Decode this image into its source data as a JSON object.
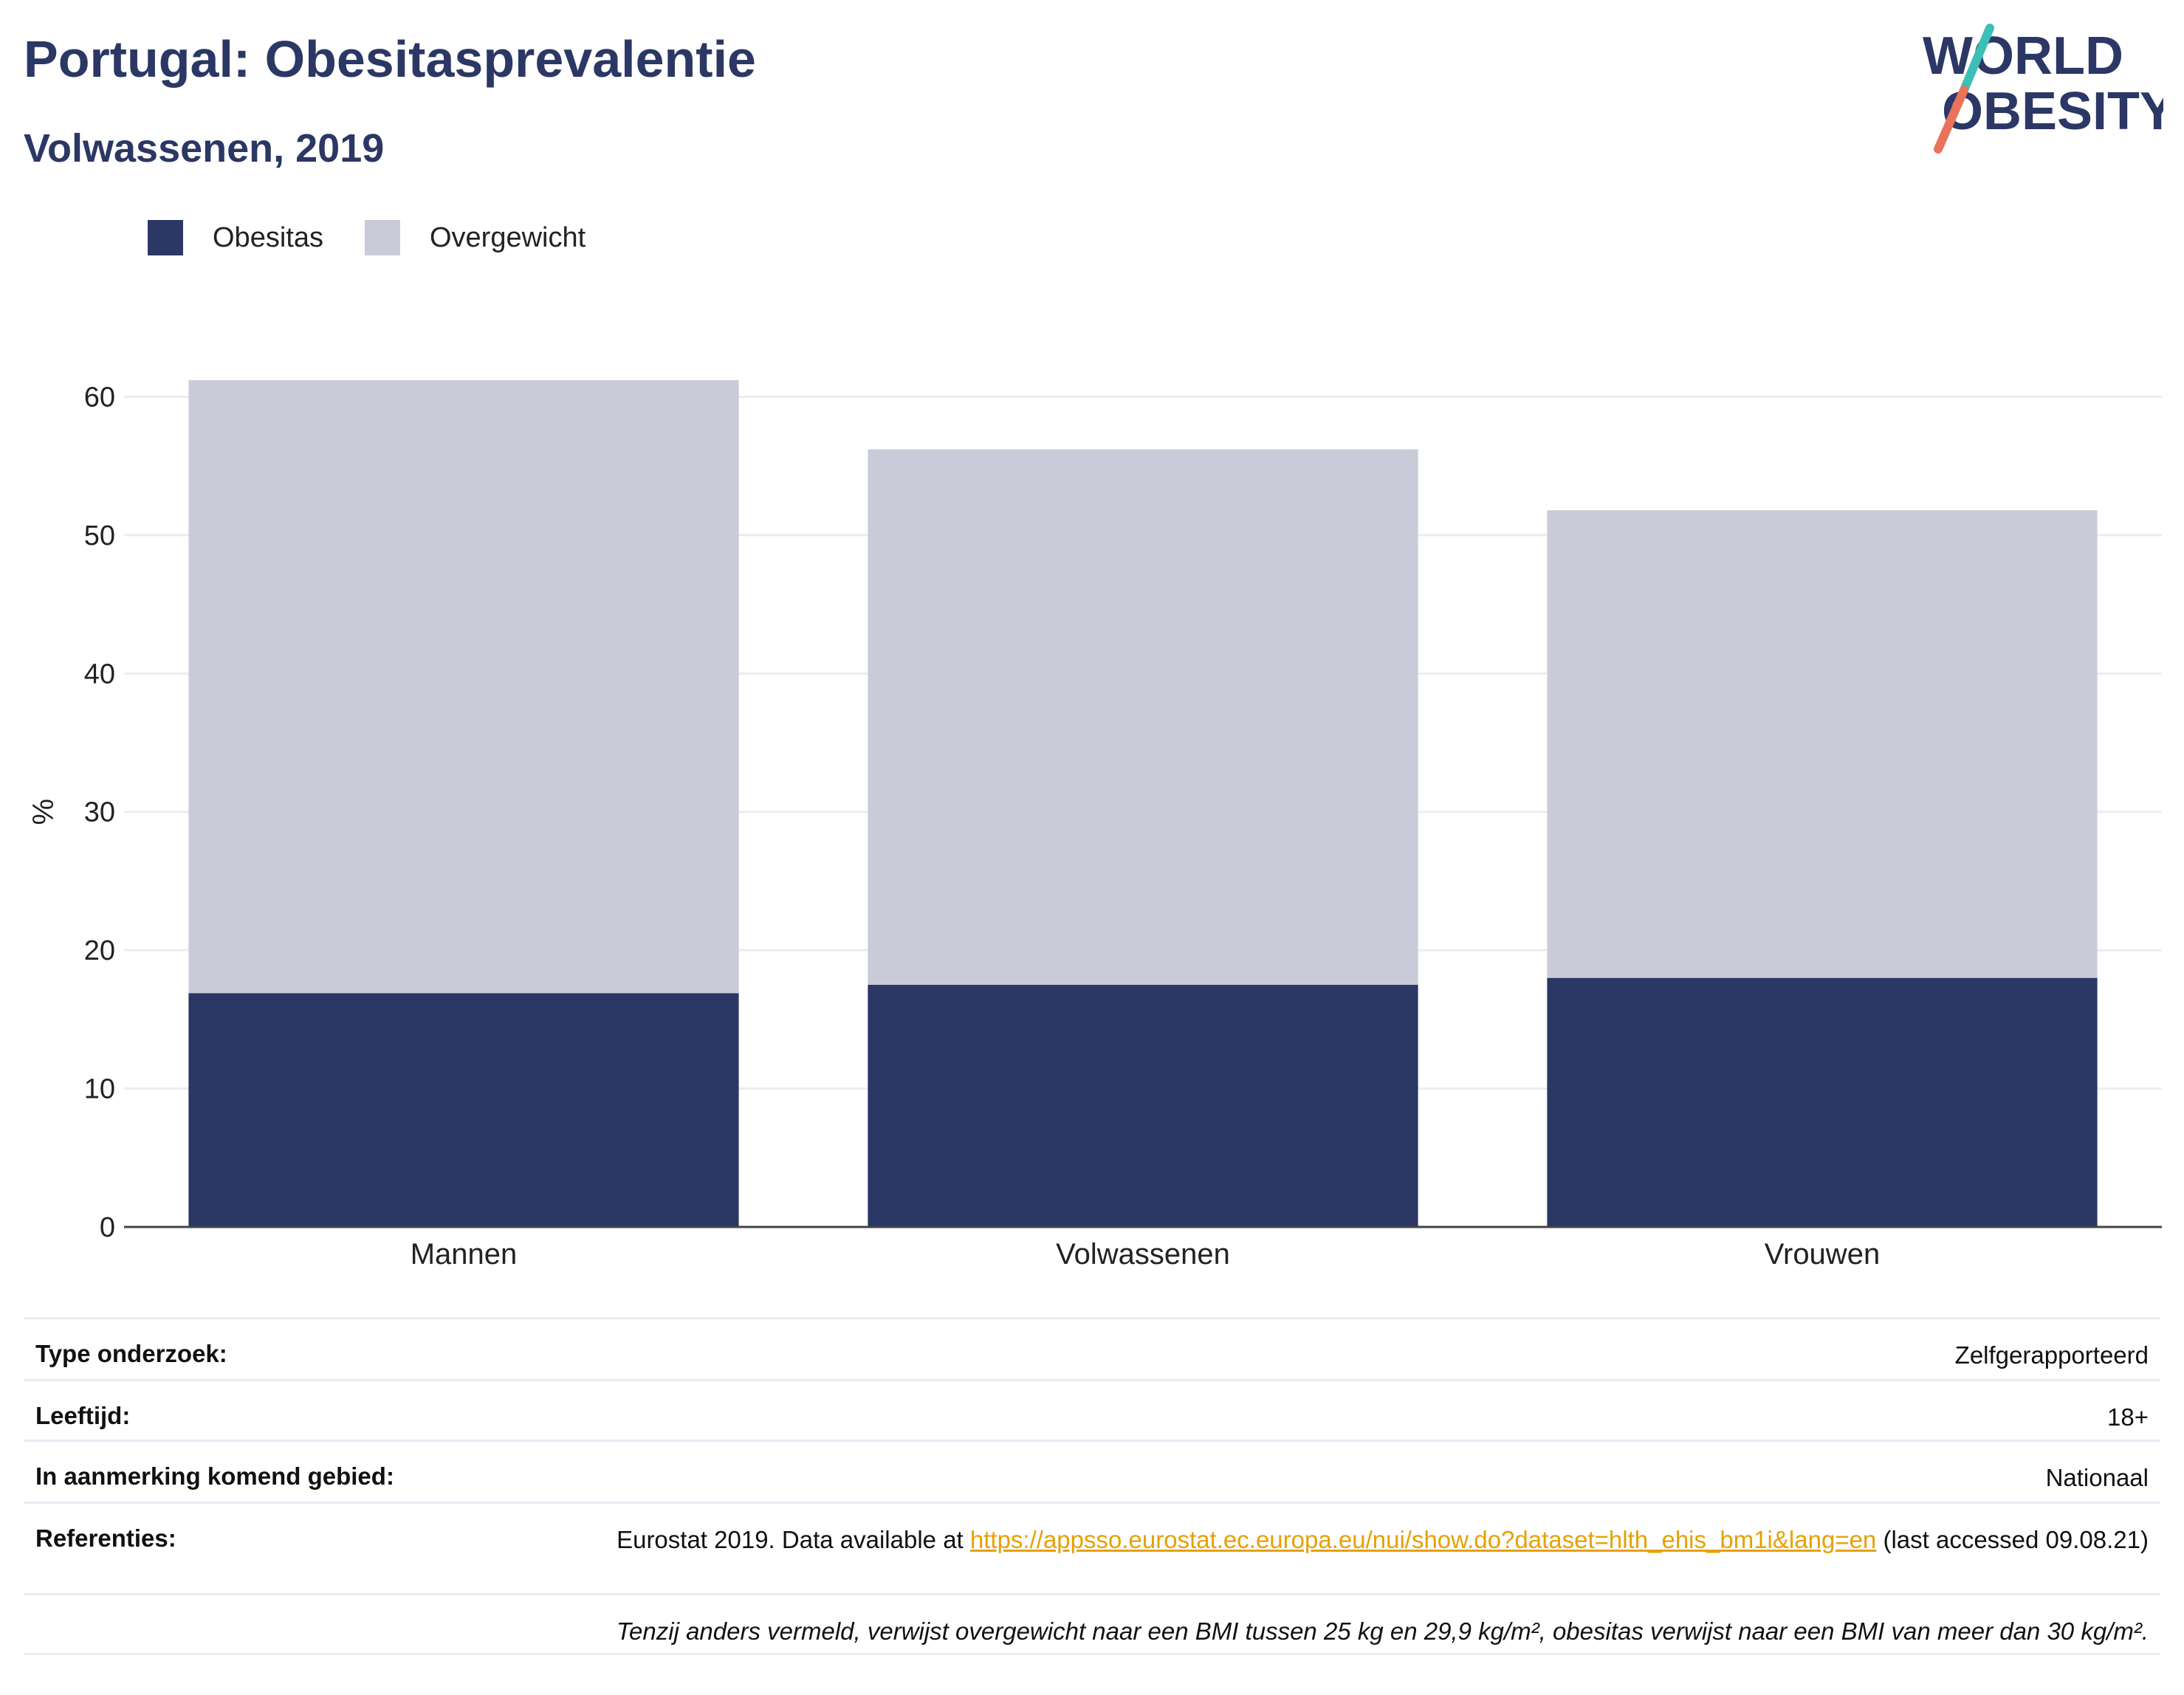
{
  "header": {
    "title": "Portugal: Obesitasprevalentie",
    "subtitle": "Volwassenen, 2019"
  },
  "logo": {
    "line1": "WORLD",
    "line2": "OBESITY"
  },
  "legend": [
    {
      "label": "Obesitas",
      "color": "#2b3764"
    },
    {
      "label": "Overgewicht",
      "color": "#c9ccd8"
    }
  ],
  "chart_data": {
    "type": "bar",
    "stacked": true,
    "categories": [
      "Mannen",
      "Volwassenen",
      "Vrouwen"
    ],
    "series": [
      {
        "name": "Obesitas",
        "values": [
          16.9,
          17.5,
          18.0
        ],
        "color": "#2b3764"
      },
      {
        "name": "Overgewicht",
        "values": [
          44.3,
          38.7,
          33.8
        ],
        "color": "#c9ccd8"
      }
    ],
    "ylabel": "%",
    "ylim": [
      0,
      62
    ],
    "yticks": [
      0,
      10,
      20,
      30,
      40,
      50,
      60
    ],
    "grid": true,
    "legend_position": "top-left"
  },
  "info": {
    "type_label": "Type onderzoek:",
    "type_value": "Zelfgerapporteerd",
    "age_label": "Leeftijd:",
    "age_value": "18+",
    "area_label": "In aanmerking komend gebied:",
    "area_value": "Nationaal",
    "ref_label": "Referenties:",
    "ref_prefix": "Eurostat 2019. Data available at ",
    "ref_link": "https://appsso.eurostat.ec.europa.eu/nui/show.do?dataset=hlth_ehis_bm1i&lang=en",
    "ref_suffix": " (last accessed 09.08.21)",
    "note": "Tenzij anders vermeld, verwijst overgewicht naar een BMI tussen 25 kg en 29,9 kg/m², obesitas verwijst naar een BMI van meer dan 30 kg/m²."
  }
}
